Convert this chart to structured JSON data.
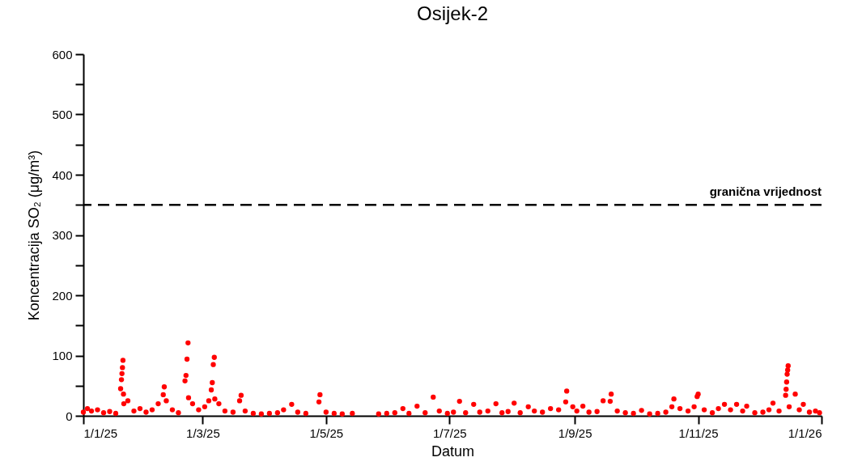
{
  "chart_data": {
    "type": "scatter",
    "title": "Osijek-2",
    "xlabel": "Datum",
    "ylabel": "Koncentracija SO₂ (μg/m³)",
    "color": "#ff0000",
    "marker": "circle",
    "x": [
      "2025-01-01",
      "2025-01-03",
      "2025-01-05",
      "2025-01-08",
      "2025-01-11",
      "2025-01-14",
      "2025-01-17",
      "2025-01-19T10:00",
      "2025-01-19T20:00",
      "2025-01-20T02:00",
      "2025-01-20T08:00",
      "2025-01-20T14:00",
      "2025-01-20T20:00",
      "2025-01-21",
      "2025-01-23",
      "2025-01-26",
      "2025-01-29",
      "2025-02-01",
      "2025-02-04",
      "2025-02-07",
      "2025-02-09T12:00",
      "2025-02-10",
      "2025-02-11",
      "2025-02-14",
      "2025-02-17",
      "2025-02-20T06:00",
      "2025-02-20T18:00",
      "2025-02-21T06:00",
      "2025-02-21T18:00",
      "2025-02-22",
      "2025-02-24",
      "2025-02-27",
      "2025-03-02",
      "2025-03-04",
      "2025-03-05T06:00",
      "2025-03-05T18:00",
      "2025-03-06T06:00",
      "2025-03-06T18:00",
      "2025-03-07",
      "2025-03-09",
      "2025-03-12",
      "2025-03-16",
      "2025-03-19T06:00",
      "2025-03-20",
      "2025-03-22",
      "2025-03-26",
      "2025-03-30",
      "2025-04-03",
      "2025-04-07",
      "2025-04-10",
      "2025-04-14",
      "2025-04-17",
      "2025-04-21",
      "2025-04-27T12:00",
      "2025-04-28",
      "2025-05-01",
      "2025-05-05",
      "2025-05-09",
      "2025-05-14",
      "2025-05-27",
      "2025-05-31",
      "2025-06-04",
      "2025-06-08",
      "2025-06-11",
      "2025-06-15",
      "2025-06-19",
      "2025-06-23",
      "2025-06-26",
      "2025-06-30",
      "2025-07-03",
      "2025-07-06",
      "2025-07-09",
      "2025-07-13",
      "2025-07-16",
      "2025-07-20",
      "2025-07-24",
      "2025-07-27",
      "2025-07-30",
      "2025-08-02",
      "2025-08-05",
      "2025-08-09",
      "2025-08-12",
      "2025-08-16",
      "2025-08-20",
      "2025-08-24",
      "2025-08-27T12:00",
      "2025-08-28",
      "2025-08-31",
      "2025-09-02",
      "2025-09-05",
      "2025-09-08",
      "2025-09-12",
      "2025-09-15",
      "2025-09-18T12:00",
      "2025-09-19",
      "2025-09-22",
      "2025-09-26",
      "2025-09-30",
      "2025-10-04",
      "2025-10-08",
      "2025-10-12",
      "2025-10-16",
      "2025-10-19",
      "2025-10-20",
      "2025-10-23",
      "2025-10-27",
      "2025-10-30",
      "2025-10-31T12:00",
      "2025-11-01",
      "2025-11-04",
      "2025-11-08",
      "2025-11-11",
      "2025-11-14",
      "2025-11-17",
      "2025-11-20",
      "2025-11-23",
      "2025-11-25",
      "2025-11-29",
      "2025-12-03",
      "2025-12-06",
      "2025-12-08",
      "2025-12-11",
      "2025-12-14T06:00",
      "2025-12-14T12:00",
      "2025-12-14T18:00",
      "2025-12-15T00:00",
      "2025-12-15T06:00",
      "2025-12-15T12:00",
      "2025-12-16",
      "2025-12-19",
      "2025-12-21",
      "2025-12-23",
      "2025-12-26",
      "2025-12-29",
      "2025-12-31"
    ],
    "values": [
      6,
      12,
      8,
      10,
      5,
      7,
      4,
      45,
      60,
      70,
      80,
      92,
      36,
      20,
      25,
      8,
      12,
      6,
      10,
      20,
      35,
      48,
      25,
      10,
      5,
      58,
      67,
      94,
      121,
      30,
      20,
      10,
      15,
      25,
      43,
      55,
      85,
      97,
      28,
      20,
      8,
      6,
      25,
      34,
      8,
      4,
      3,
      4,
      5,
      10,
      19,
      6,
      4,
      23,
      35,
      6,
      4,
      3,
      4,
      3,
      4,
      5,
      12,
      4,
      16,
      5,
      31,
      8,
      4,
      6,
      24,
      5,
      19,
      6,
      8,
      20,
      5,
      7,
      21,
      5,
      15,
      8,
      6,
      12,
      10,
      23,
      41,
      15,
      8,
      16,
      6,
      7,
      25,
      24,
      36,
      8,
      5,
      4,
      9,
      3,
      4,
      6,
      15,
      28,
      12,
      8,
      15,
      32,
      36,
      10,
      5,
      12,
      19,
      10,
      19,
      8,
      16,
      5,
      6,
      10,
      21,
      8,
      34,
      44,
      56,
      69,
      76,
      83,
      15,
      36,
      10,
      19,
      6,
      8,
      5
    ],
    "xlim": [
      "2025-01-01",
      "2026-01-01"
    ],
    "xticks": [
      {
        "value": "2025-01-01",
        "label": "1/1/25"
      },
      {
        "value": "2025-03-01",
        "label": "1/3/25"
      },
      {
        "value": "2025-05-01",
        "label": "1/5/25"
      },
      {
        "value": "2025-07-01",
        "label": "1/7/25"
      },
      {
        "value": "2025-09-01",
        "label": "1/9/25"
      },
      {
        "value": "2025-11-01",
        "label": "1/11/25"
      },
      {
        "value": "2026-01-01",
        "label": "1/1/26"
      }
    ],
    "ylim": [
      0,
      600
    ],
    "yticks": [
      0,
      {
        "value": 50,
        "label": null
      },
      100,
      {
        "value": 150,
        "label": null
      },
      200,
      {
        "value": 250,
        "label": null
      },
      300,
      {
        "value": 350,
        "label": null
      },
      400,
      {
        "value": 450,
        "label": null
      },
      500,
      {
        "value": 550,
        "label": null
      },
      600
    ],
    "ref_lines": [
      {
        "axis": "y",
        "value": 350,
        "label": "granična vrijednost",
        "color": "#000000",
        "line_style": "dashed"
      }
    ]
  }
}
